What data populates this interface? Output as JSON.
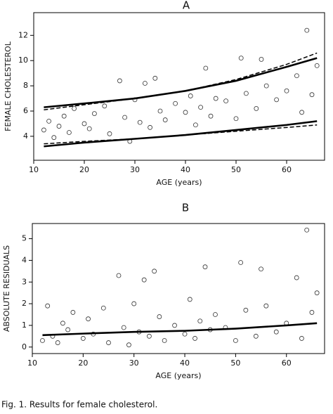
{
  "chart_data": [
    {
      "type": "scatter",
      "title": "A",
      "x_label": "AGE (years)",
      "y_label": "FEMALE CHOLESTEROL",
      "xlim": [
        10,
        67.5
      ],
      "ylim": [
        2.1,
        13.8
      ],
      "xticks": [
        10,
        20,
        30,
        40,
        50,
        60
      ],
      "yticks": [
        4,
        6,
        8,
        10,
        12
      ],
      "points": {
        "x": [
          12,
          13,
          14,
          15,
          16,
          17,
          18,
          20,
          21,
          22,
          24,
          25,
          27,
          28,
          29,
          30,
          31,
          32,
          33,
          34,
          35,
          36,
          38,
          40,
          41,
          42,
          43,
          44,
          45,
          46,
          48,
          50,
          51,
          52,
          54,
          55,
          56,
          58,
          60,
          62,
          63,
          64,
          65,
          66
        ],
        "y": [
          4.5,
          5.2,
          3.9,
          4.8,
          5.6,
          4.3,
          6.2,
          5.0,
          4.6,
          5.8,
          6.4,
          4.2,
          8.4,
          5.5,
          3.6,
          6.9,
          5.1,
          8.2,
          4.7,
          8.6,
          6.0,
          5.3,
          6.6,
          5.9,
          7.2,
          4.9,
          6.3,
          9.4,
          5.6,
          7.0,
          6.8,
          5.4,
          10.2,
          7.4,
          6.2,
          10.1,
          8.0,
          6.9,
          7.6,
          8.8,
          5.9,
          12.4,
          7.3,
          9.6
        ]
      },
      "curves": [
        {
          "style": "solid",
          "x": [
            12,
            20,
            30,
            40,
            50,
            60,
            66
          ],
          "y": [
            6.3,
            6.6,
            7.0,
            7.6,
            8.4,
            9.5,
            10.2
          ]
        },
        {
          "style": "dashed",
          "x": [
            12,
            20,
            30,
            40,
            50,
            60,
            66
          ],
          "y": [
            6.1,
            6.5,
            7.0,
            7.6,
            8.5,
            9.7,
            10.6
          ]
        },
        {
          "style": "solid",
          "x": [
            12,
            20,
            30,
            40,
            50,
            60,
            66
          ],
          "y": [
            3.2,
            3.5,
            3.8,
            4.1,
            4.5,
            4.9,
            5.2
          ]
        },
        {
          "style": "dashed",
          "x": [
            12,
            20,
            30,
            40,
            50,
            60,
            66
          ],
          "y": [
            3.4,
            3.6,
            3.8,
            4.1,
            4.4,
            4.7,
            4.9
          ]
        }
      ]
    },
    {
      "type": "scatter",
      "title": "B",
      "x_label": "AGE (years)",
      "y_label": "ABSOLUTE RESIDUALS",
      "xlim": [
        10,
        67.5
      ],
      "ylim": [
        -0.3,
        5.7
      ],
      "xticks": [
        10,
        20,
        30,
        40,
        50,
        60
      ],
      "yticks": [
        0,
        1,
        2,
        3,
        4,
        5
      ],
      "points": {
        "x": [
          12,
          13,
          14,
          15,
          16,
          17,
          18,
          20,
          21,
          22,
          24,
          25,
          27,
          28,
          29,
          30,
          31,
          32,
          33,
          34,
          35,
          36,
          38,
          40,
          41,
          42,
          43,
          44,
          45,
          46,
          48,
          50,
          51,
          52,
          54,
          55,
          56,
          58,
          60,
          62,
          63,
          64,
          65,
          66
        ],
        "y": [
          0.3,
          1.9,
          0.5,
          0.2,
          1.1,
          0.8,
          1.6,
          0.4,
          1.3,
          0.6,
          1.8,
          0.2,
          3.3,
          0.9,
          0.1,
          2.0,
          0.7,
          3.1,
          0.5,
          3.5,
          1.4,
          0.3,
          1.0,
          0.6,
          2.2,
          0.4,
          1.2,
          3.7,
          0.8,
          1.5,
          0.9,
          0.3,
          3.9,
          1.7,
          0.5,
          3.6,
          1.9,
          0.7,
          1.1,
          3.2,
          0.4,
          5.4,
          1.6,
          2.5
        ]
      },
      "curves": [
        {
          "style": "solid",
          "x": [
            12,
            20,
            30,
            40,
            50,
            60,
            66
          ],
          "y": [
            0.55,
            0.62,
            0.7,
            0.75,
            0.85,
            1.0,
            1.1
          ]
        }
      ]
    }
  ],
  "caption": "Fig. 1. Results for female cholesterol."
}
